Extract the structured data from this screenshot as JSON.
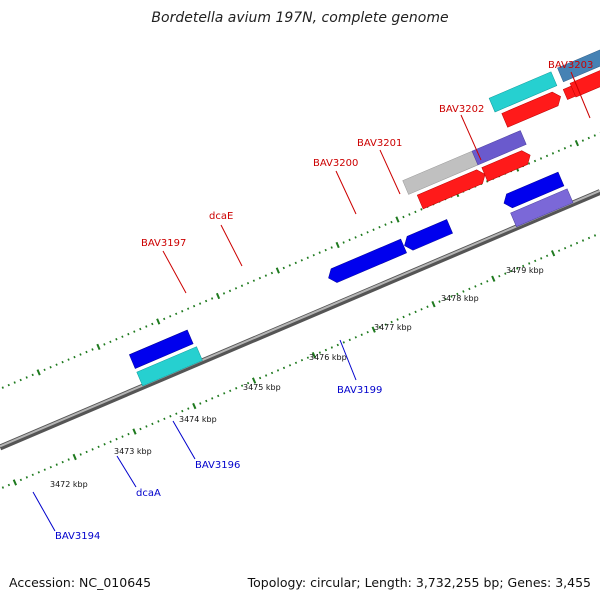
{
  "title": "Bordetella avium 197N, complete genome",
  "footer": {
    "accession": "Accession: NC_010645",
    "stats": "Topology: circular; Length: 3,732,255 bp; Genes: 3,455"
  },
  "colors": {
    "backbone": "#8c8c8c",
    "tick": "#1f7a1f",
    "label_forward": "#cc0000",
    "label_reverse": "#0000cc",
    "cds_red": "#ff0000",
    "blue": "#0000ee",
    "cyan": "#22d3d3",
    "purple": "#6a5acd",
    "steelblue": "#4682b4",
    "grey": "#bdbdbd",
    "darkslate": "#483d8b"
  },
  "scale": {
    "unit": "kbp",
    "labels": [
      "3472 kbp",
      "3473 kbp",
      "3474 kbp",
      "3475 kbp",
      "3476 kbp",
      "3477 kbp",
      "3478 kbp",
      "3479 kbp"
    ]
  },
  "genes_forward": [
    {
      "name": "BAV3197"
    },
    {
      "name": "dcaE"
    },
    {
      "name": "BAV3200"
    },
    {
      "name": "BAV3201"
    },
    {
      "name": "BAV3202"
    },
    {
      "name": "BAV3203"
    }
  ],
  "genes_reverse": [
    {
      "name": "BAV3194"
    },
    {
      "name": "dcaA"
    },
    {
      "name": "BAV3196"
    },
    {
      "name": "BAV3199"
    }
  ]
}
